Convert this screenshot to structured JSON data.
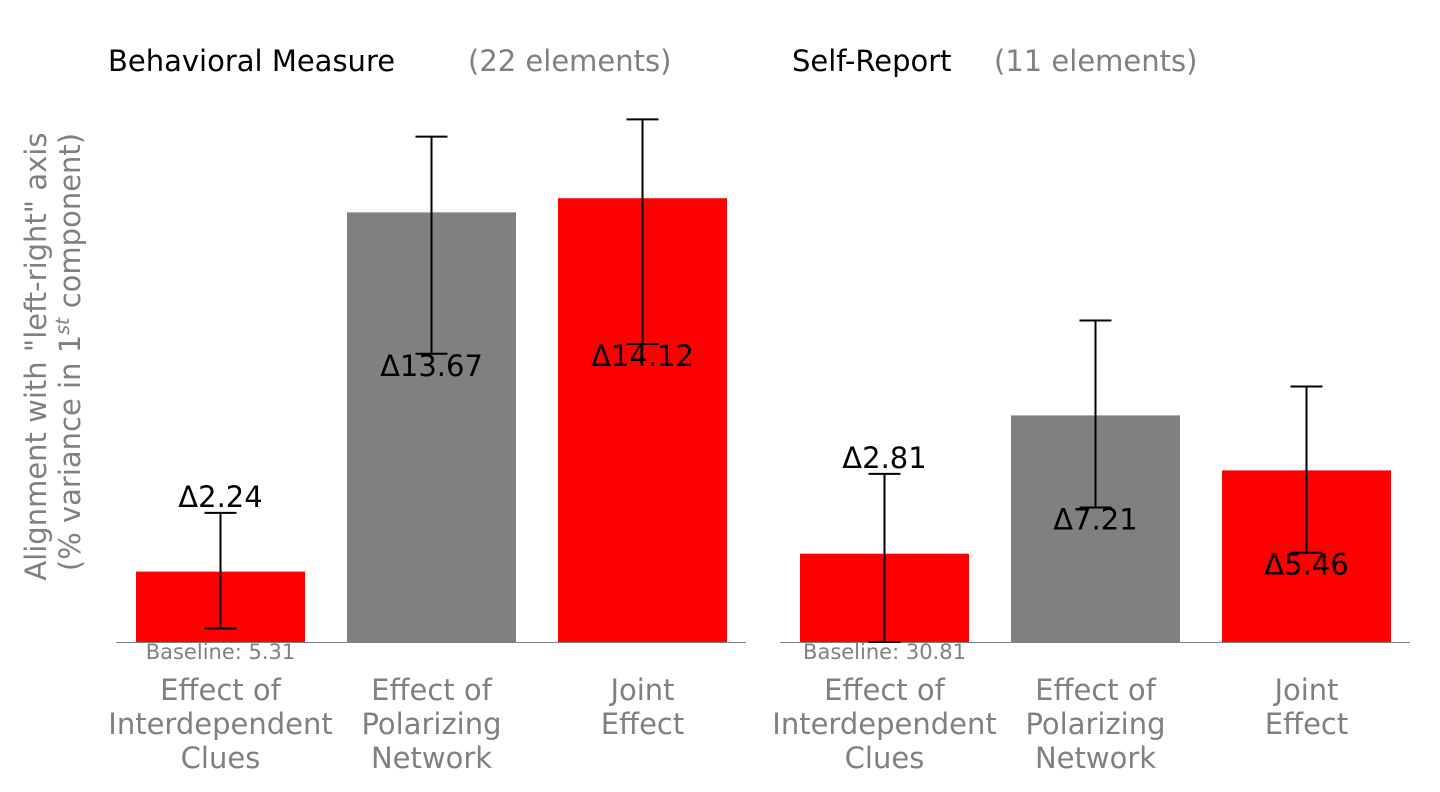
{
  "ylabel_line1": "Alignment with \"left-right\" axis",
  "ylabel_line2_prefix": "(% variance in 1",
  "ylabel_line2_sup": "st",
  "ylabel_line2_suffix": " component)",
  "chart_data": [
    {
      "type": "bar",
      "title": "Behavioral Measure",
      "subtitle": "(22 elements)",
      "categories": [
        [
          "Effect of",
          "Interdependent",
          "Clues"
        ],
        [
          "Effect of",
          "Polarizing",
          "Network"
        ],
        [
          "Joint",
          "Effect"
        ]
      ],
      "values": [
        2.24,
        13.67,
        14.12
      ],
      "value_labels": [
        "Δ2.24",
        "Δ13.67",
        "Δ14.12"
      ],
      "error_low": [
        0.43,
        9.17,
        9.48
      ],
      "error_high": [
        4.11,
        16.08,
        16.63
      ],
      "colors": [
        "#ff0000",
        "#808080",
        "#ff0000"
      ],
      "baseline_label": "Baseline: 5.31",
      "ylim": [
        0,
        17.5
      ]
    },
    {
      "type": "bar",
      "title": "Self-Report",
      "subtitle": "(11 elements)",
      "categories": [
        [
          "Effect of",
          "Interdependent",
          "Clues"
        ],
        [
          "Effect of",
          "Polarizing",
          "Network"
        ],
        [
          "Joint",
          "Effect"
        ]
      ],
      "values": [
        2.81,
        7.21,
        5.46
      ],
      "value_labels": [
        "Δ2.81",
        "Δ7.21",
        "Δ5.46"
      ],
      "error_low": [
        0.0,
        4.28,
        2.84
      ],
      "error_high": [
        5.35,
        10.23,
        8.13
      ],
      "colors": [
        "#ff0000",
        "#808080",
        "#ff0000"
      ],
      "baseline_label": "Baseline: 30.81",
      "ylim": [
        0,
        17.5
      ]
    }
  ]
}
